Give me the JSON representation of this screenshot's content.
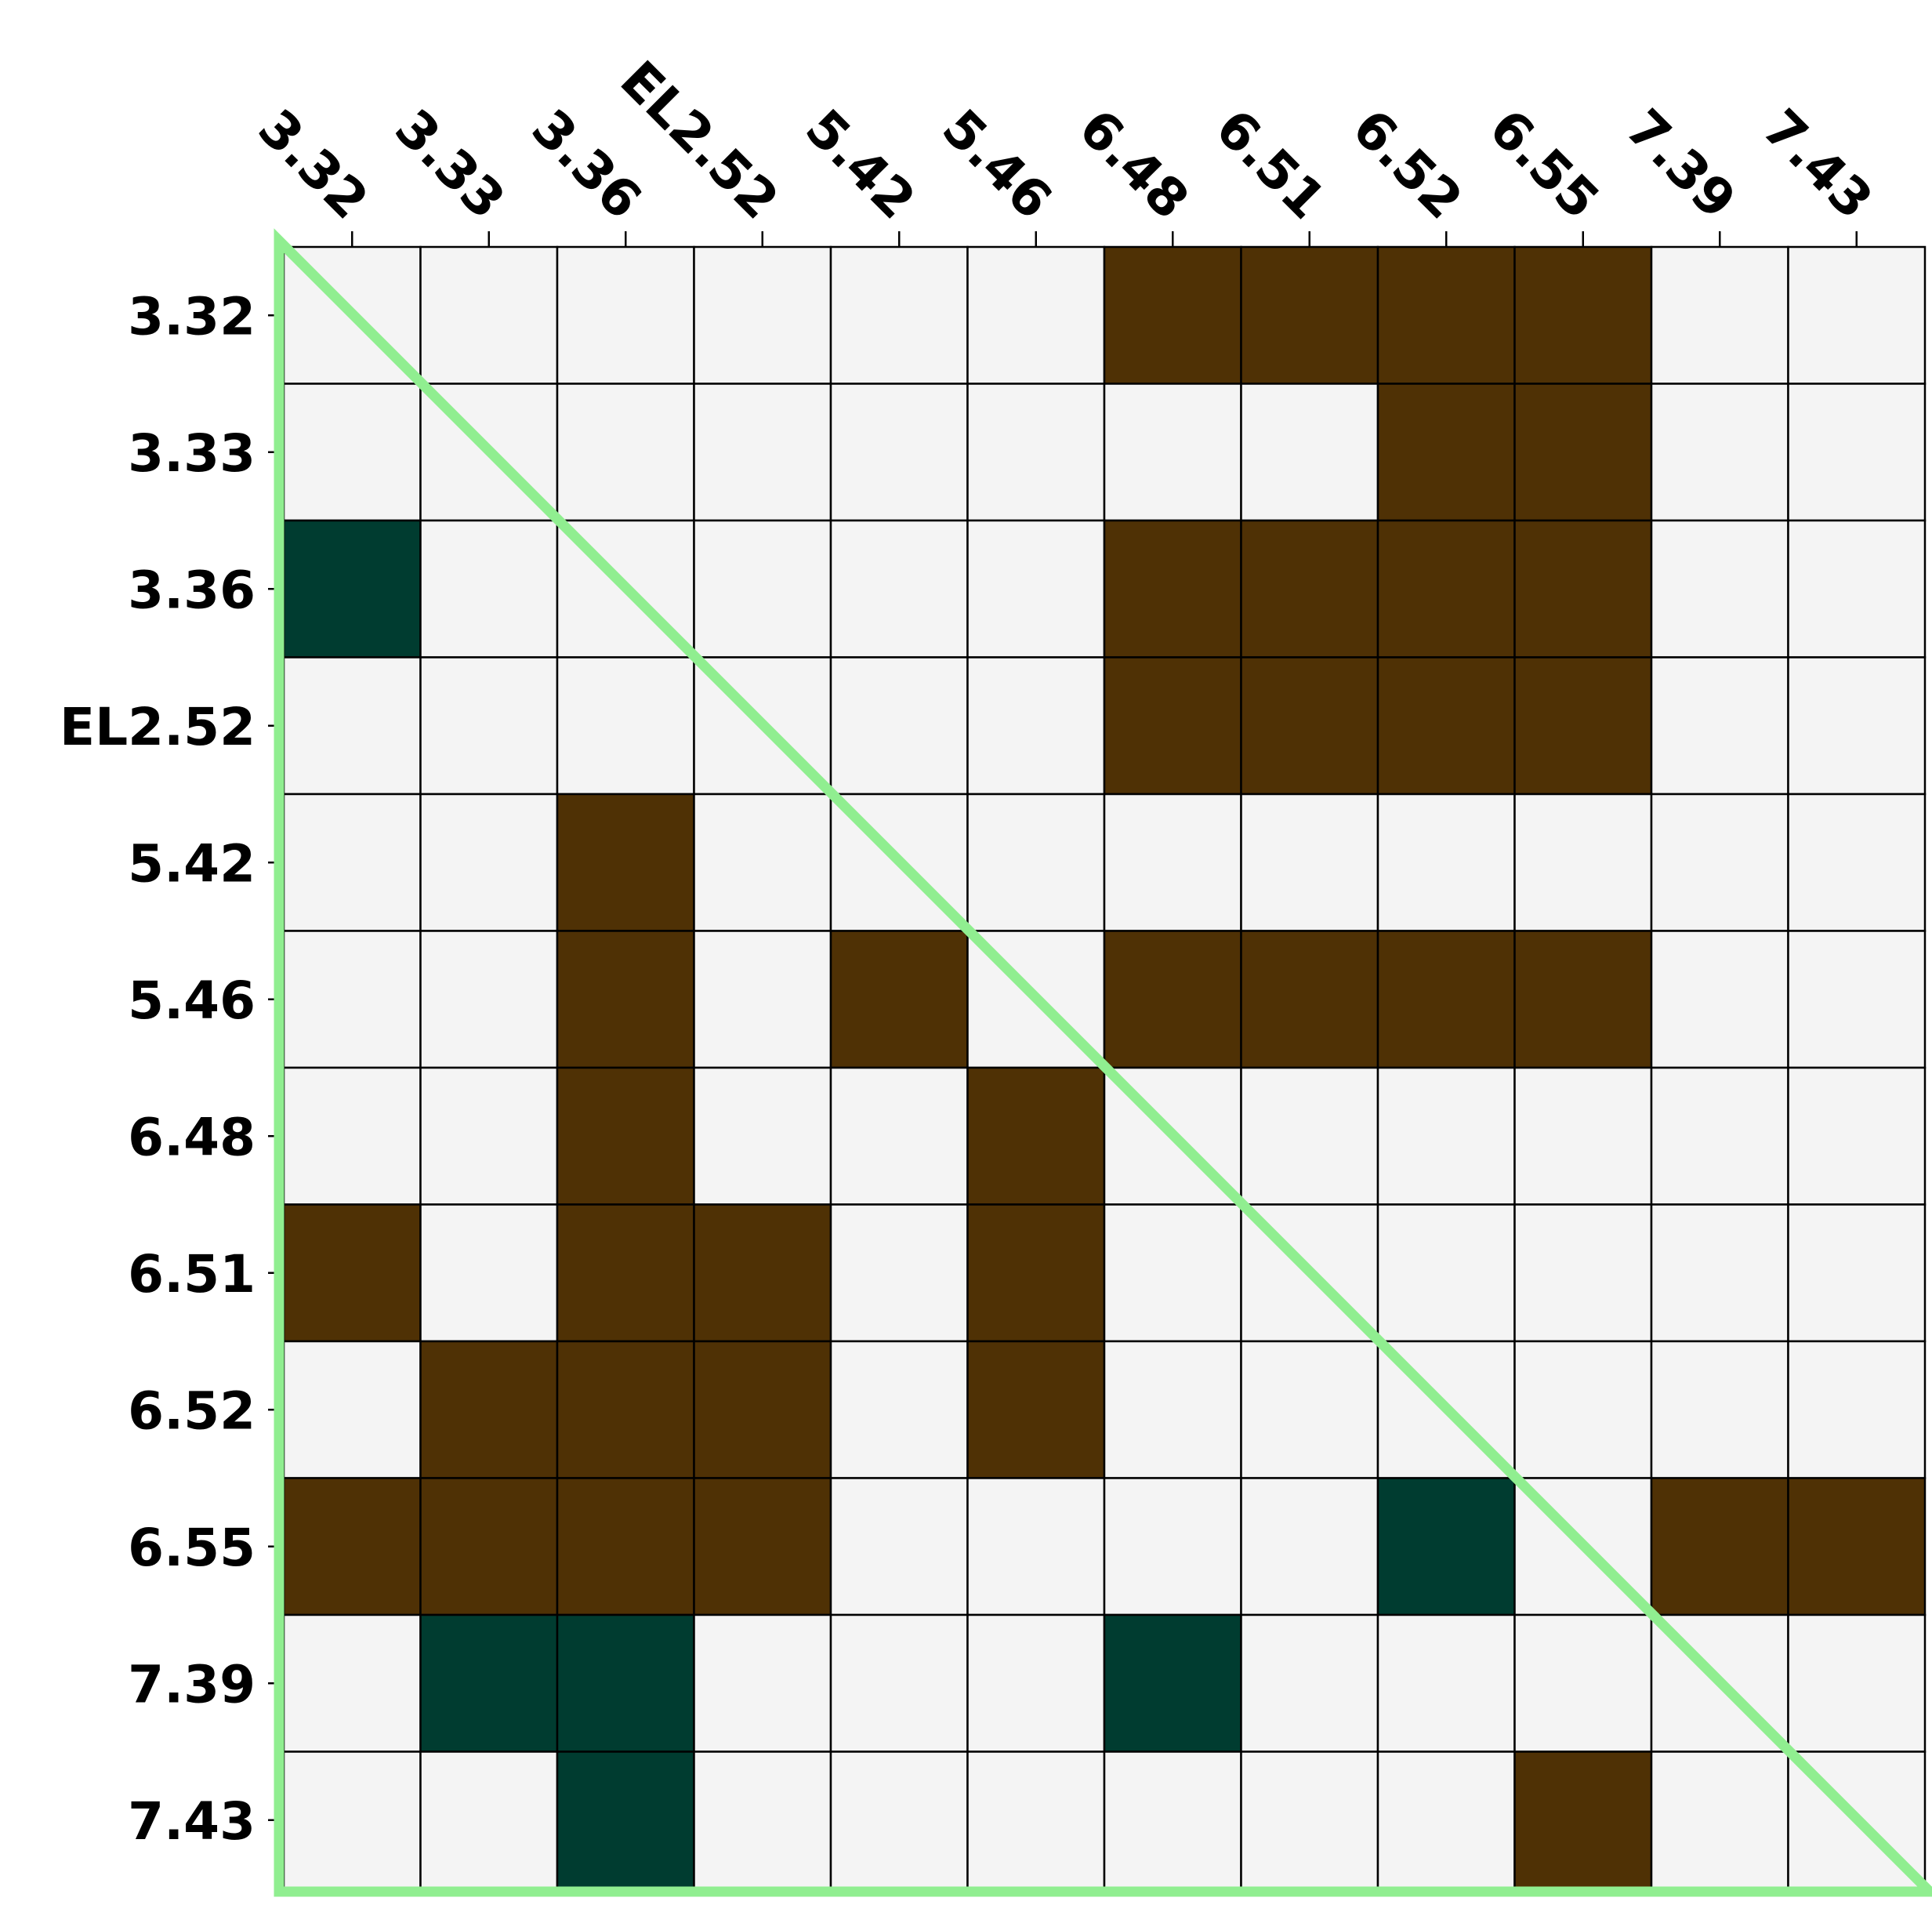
{
  "chart_data": {
    "type": "heatmap",
    "title": "",
    "xlabel": "",
    "ylabel": "",
    "x_tick_position": "top",
    "x_tick_rotation_deg": 45,
    "grid": true,
    "legend": "none",
    "categories": [
      "3.32",
      "3.33",
      "3.36",
      "EL2.52",
      "5.42",
      "5.46",
      "6.48",
      "6.51",
      "6.52",
      "6.55",
      "7.39",
      "7.43"
    ],
    "colors": {
      "0": "#f4f4f4",
      "1": "#4f3105",
      "2": "#003c30",
      "gridline": "#000000",
      "diagonal_frame": "#90ee90"
    },
    "matrix": [
      [
        0,
        0,
        0,
        0,
        0,
        0,
        1,
        1,
        1,
        1,
        0,
        0
      ],
      [
        0,
        0,
        0,
        0,
        0,
        0,
        0,
        0,
        1,
        1,
        0,
        0
      ],
      [
        2,
        0,
        0,
        0,
        0,
        0,
        1,
        1,
        1,
        1,
        0,
        0
      ],
      [
        0,
        0,
        0,
        0,
        0,
        0,
        1,
        1,
        1,
        1,
        0,
        0
      ],
      [
        0,
        0,
        1,
        0,
        0,
        0,
        0,
        0,
        0,
        0,
        0,
        0
      ],
      [
        0,
        0,
        1,
        0,
        1,
        0,
        1,
        1,
        1,
        1,
        0,
        0
      ],
      [
        0,
        0,
        1,
        0,
        0,
        1,
        0,
        0,
        0,
        0,
        0,
        0
      ],
      [
        1,
        0,
        1,
        1,
        0,
        1,
        0,
        0,
        0,
        0,
        0,
        0
      ],
      [
        0,
        1,
        1,
        1,
        0,
        1,
        0,
        0,
        0,
        0,
        0,
        0
      ],
      [
        1,
        1,
        1,
        1,
        0,
        0,
        0,
        0,
        2,
        0,
        1,
        1
      ],
      [
        0,
        2,
        2,
        0,
        0,
        0,
        2,
        0,
        0,
        0,
        0,
        0
      ],
      [
        0,
        0,
        2,
        0,
        0,
        0,
        0,
        0,
        0,
        1,
        0,
        0
      ]
    ]
  }
}
